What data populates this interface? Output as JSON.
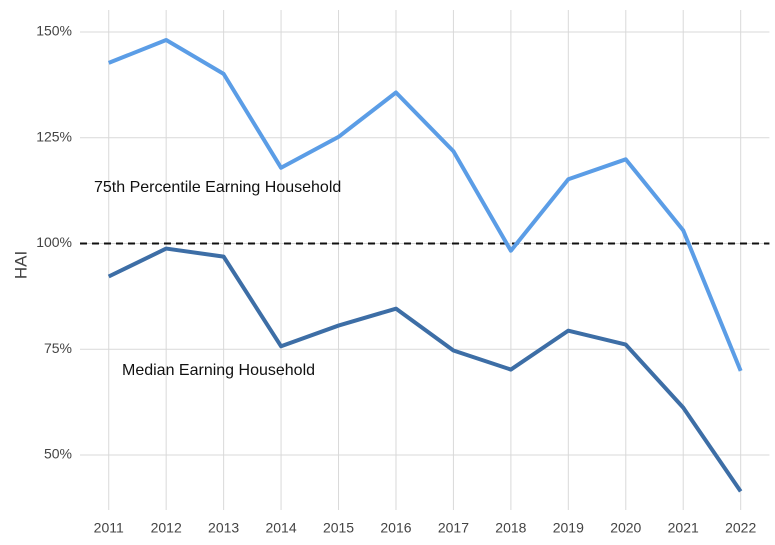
{
  "chart_data": {
    "type": "line",
    "y_label": "HAI",
    "categories": [
      "2011",
      "2012",
      "2013",
      "2014",
      "2015",
      "2016",
      "2017",
      "2018",
      "2019",
      "2020",
      "2021",
      "2022"
    ],
    "series": [
      {
        "name": "75th Percentile Earning Household",
        "color": "#5b9de6",
        "values": [
          142.7,
          148.1,
          140.1,
          117.9,
          125.2,
          135.7,
          121.8,
          98.3,
          115.2,
          119.9,
          103.1,
          69.9
        ]
      },
      {
        "name": "Median Earning Household",
        "color": "#3d6ea6",
        "values": [
          92.2,
          98.8,
          96.9,
          75.7,
          80.6,
          84.6,
          74.7,
          70.2,
          79.4,
          76.1,
          61.2,
          41.4
        ]
      }
    ],
    "hline": 100,
    "ylim": [
      37,
      155.2
    ],
    "yticks": [
      {
        "value": 50,
        "label": "50%"
      },
      {
        "value": 75,
        "label": "75%"
      },
      {
        "value": 100,
        "label": "100%"
      },
      {
        "value": 125,
        "label": "125%"
      },
      {
        "value": 150,
        "label": "150%"
      }
    ],
    "grid": true
  }
}
